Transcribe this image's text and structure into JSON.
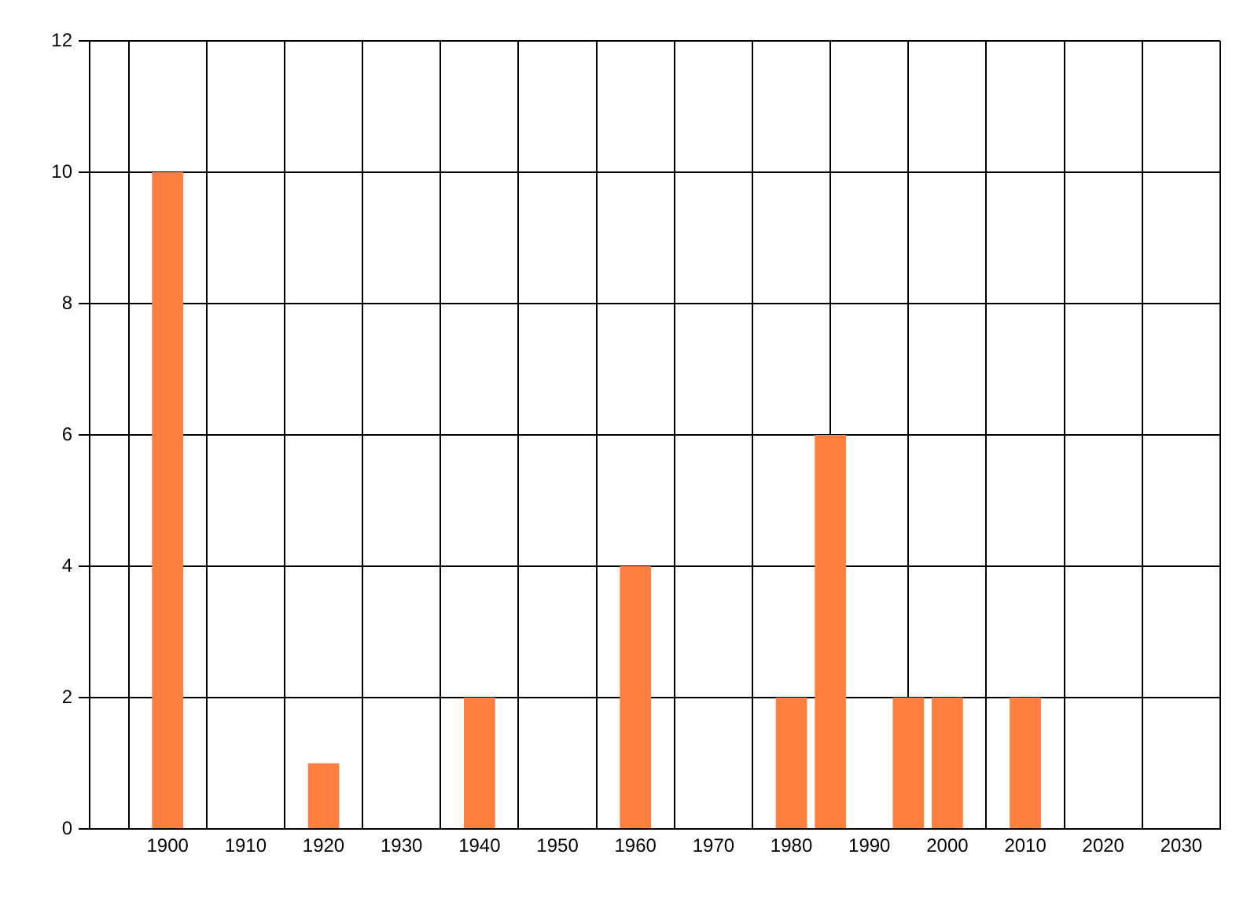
{
  "chart_data": {
    "type": "bar",
    "x": [
      1900,
      1920,
      1940,
      1960,
      1980,
      1985,
      1995,
      2000,
      2010
    ],
    "values": [
      10,
      1,
      2,
      4,
      2,
      6,
      2,
      2,
      2
    ],
    "color": "#ff7f40",
    "xlim": [
      1890,
      2035
    ],
    "xticks": [
      1900,
      1910,
      1920,
      1930,
      1940,
      1950,
      1960,
      1970,
      1980,
      1990,
      2000,
      2010,
      2020,
      2030
    ],
    "ylim": [
      0,
      12
    ],
    "yticks": [
      0,
      2,
      4,
      6,
      8,
      10,
      12
    ],
    "grid": true,
    "legend": false
  }
}
